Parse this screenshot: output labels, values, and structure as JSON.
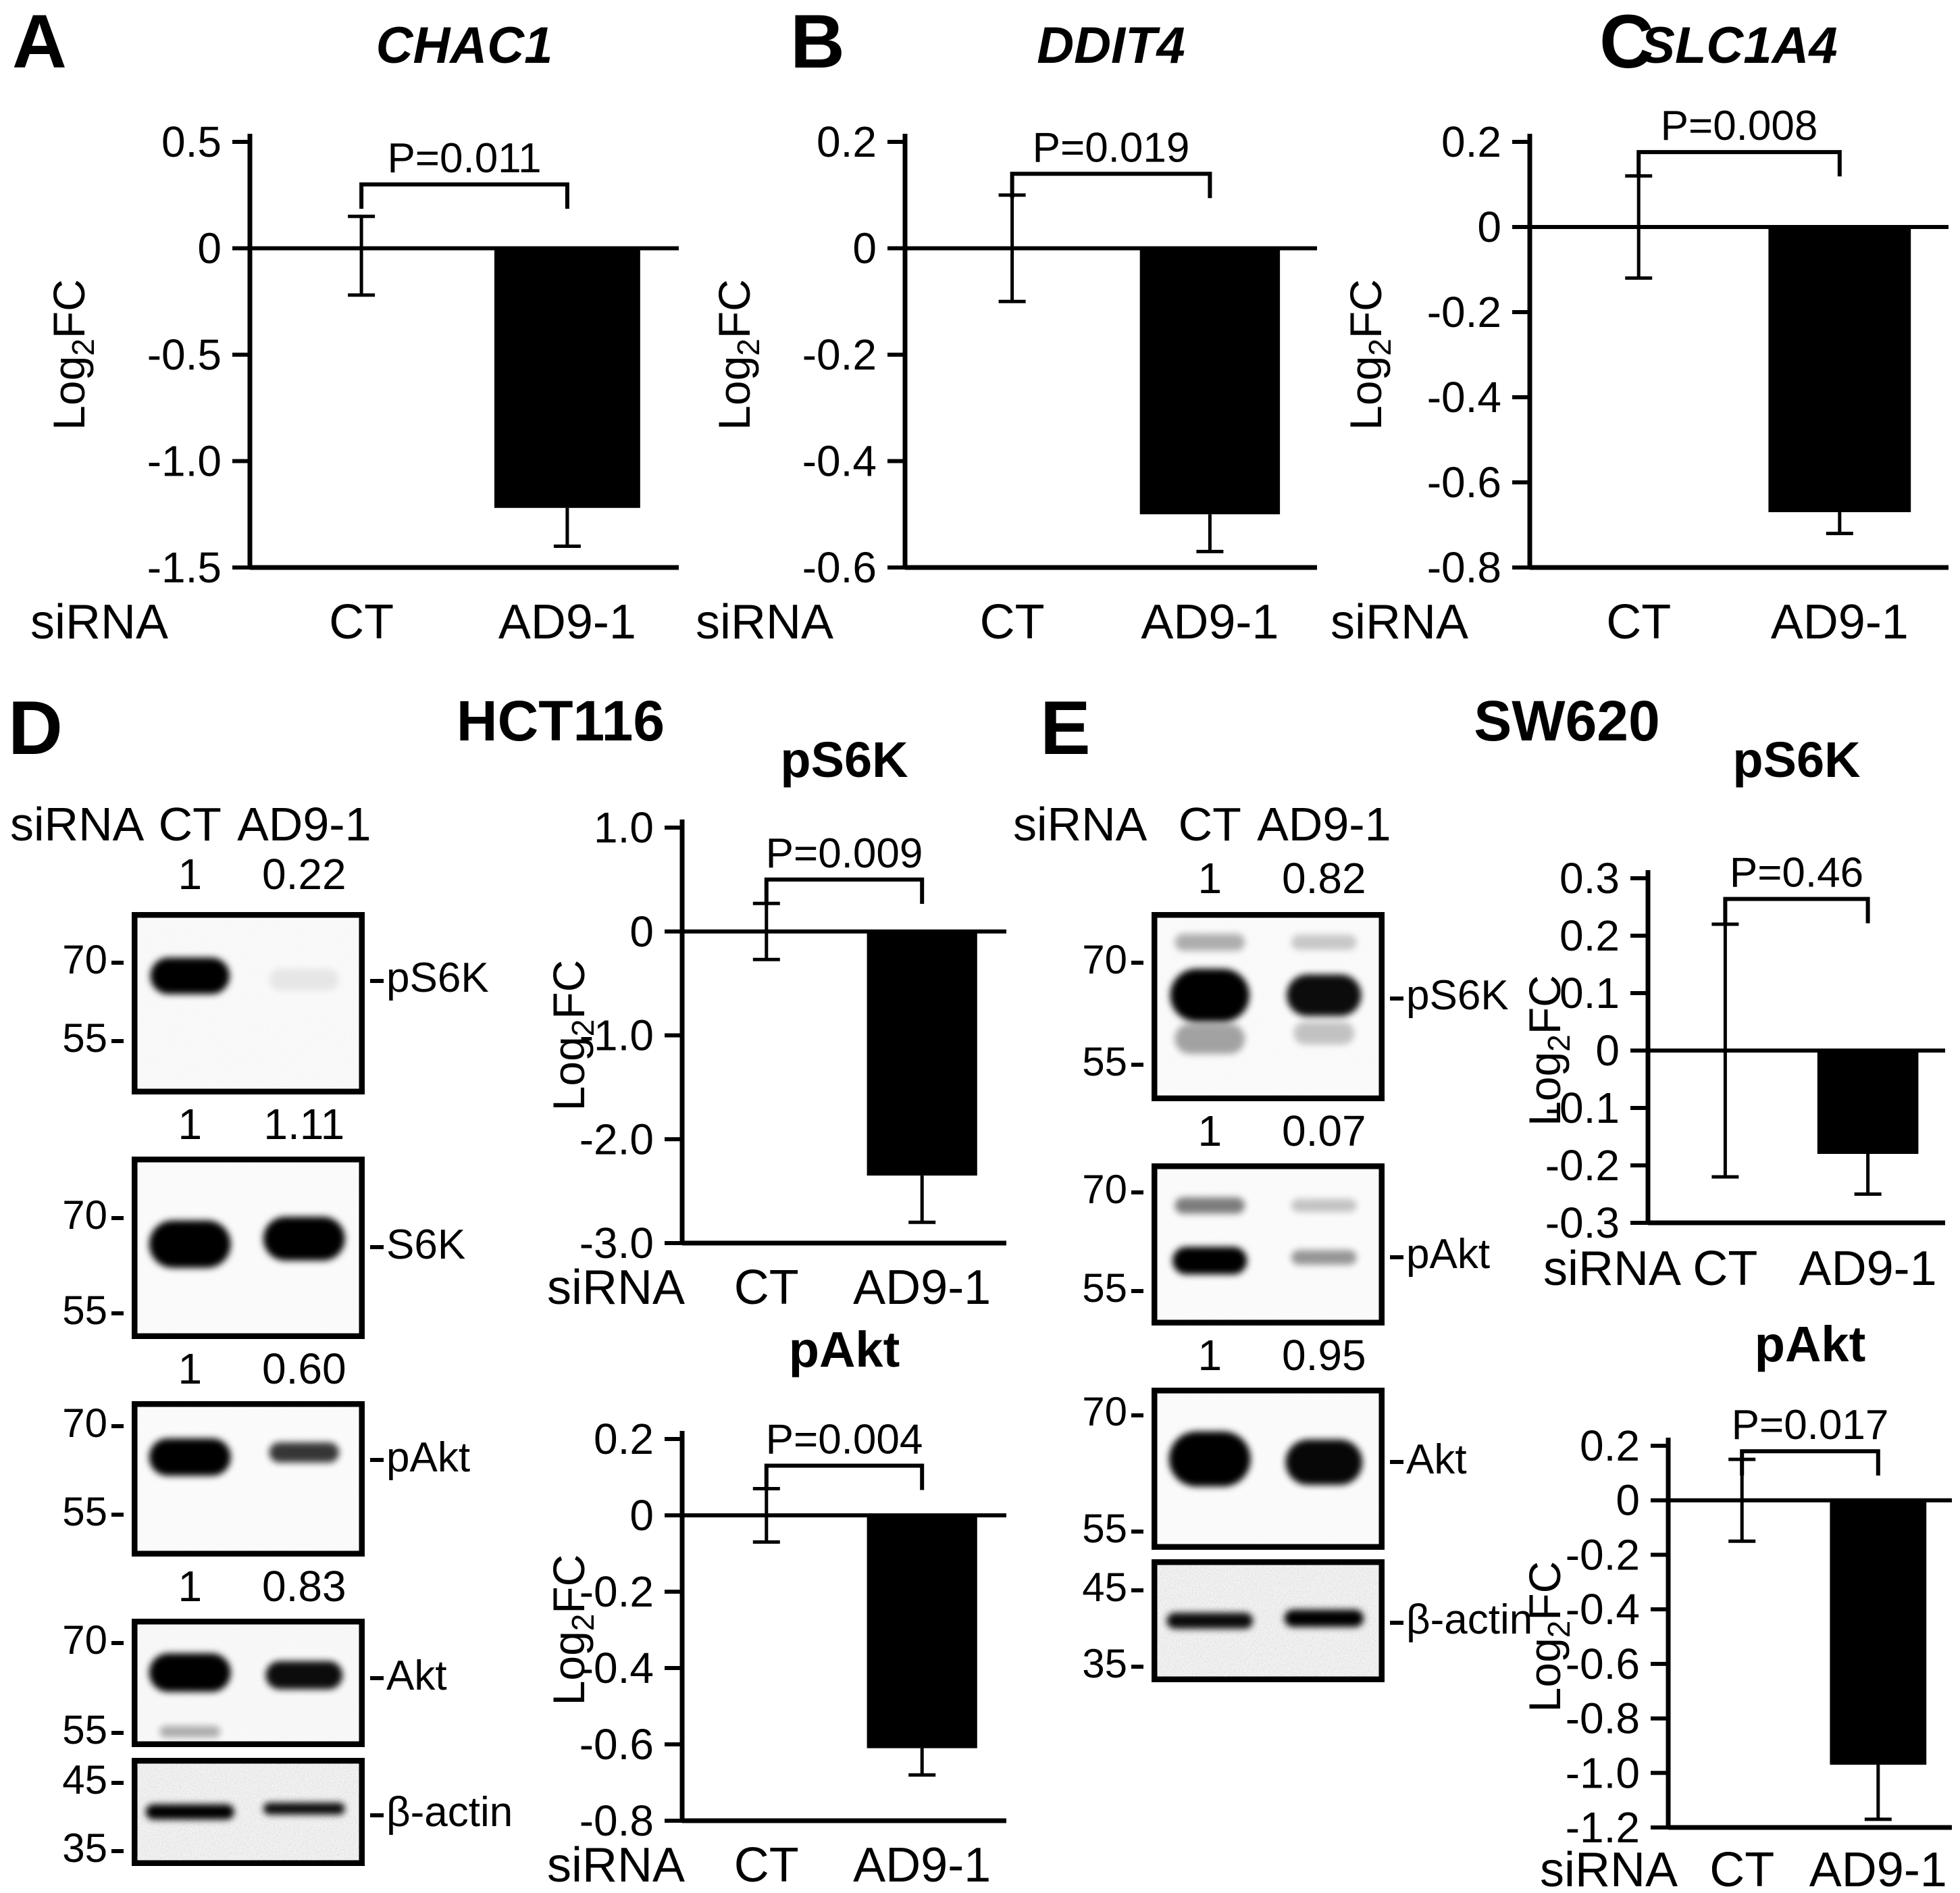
{
  "panels": {
    "A": {
      "letter": "A"
    },
    "B": {
      "letter": "B"
    },
    "C": {
      "letter": "C"
    },
    "D": {
      "letter": "D",
      "title": "HCT116"
    },
    "E": {
      "letter": "E",
      "title": "SW620"
    }
  },
  "axis": {
    "ylabel": {
      "pre": "Log",
      "sub": "2",
      "post": "FC"
    },
    "xlabel_prefix": "siRNA"
  },
  "chart_data": [
    {
      "id": "A",
      "type": "bar",
      "title": "CHAC1",
      "title_italic": true,
      "p_label": "P=0.011",
      "categories": [
        "CT",
        "AD9-1"
      ],
      "values": [
        0,
        -1.22
      ],
      "errors_up": [
        0.15,
        0
      ],
      "errors_down": [
        0.22,
        0.18
      ],
      "ylim": [
        -1.5,
        0.5
      ],
      "ylabel": "Log2FC",
      "xlabel_prefix": "siRNA",
      "bar_color": "#000000",
      "grid": false,
      "yticks": [
        {
          "v": 0.5,
          "label": "0.5"
        },
        {
          "v": 0,
          "label": "0"
        },
        {
          "v": -0.5,
          "label": "-0.5"
        },
        {
          "v": -1.0,
          "label": "-1.0"
        },
        {
          "v": -1.5,
          "label": "-1.5"
        }
      ]
    },
    {
      "id": "B",
      "type": "bar",
      "title": "DDIT4",
      "title_italic": true,
      "p_label": "P=0.019",
      "categories": [
        "CT",
        "AD9-1"
      ],
      "values": [
        0,
        -0.5
      ],
      "errors_up": [
        0.1,
        0
      ],
      "errors_down": [
        0.1,
        0.07
      ],
      "ylim": [
        -0.6,
        0.2
      ],
      "ylabel": "Log2FC",
      "xlabel_prefix": "siRNA",
      "bar_color": "#000000",
      "grid": false,
      "yticks": [
        {
          "v": 0.2,
          "label": "0.2"
        },
        {
          "v": 0,
          "label": "0"
        },
        {
          "v": -0.2,
          "label": "-0.2"
        },
        {
          "v": -0.4,
          "label": "-0.4"
        },
        {
          "v": -0.6,
          "label": "-0.6"
        }
      ]
    },
    {
      "id": "C",
      "type": "bar",
      "title": "SLC1A4",
      "title_italic": true,
      "p_label": "P=0.008",
      "categories": [
        "CT",
        "AD9-1"
      ],
      "values": [
        0,
        -0.67
      ],
      "errors_up": [
        0.12,
        0
      ],
      "errors_down": [
        0.12,
        0.05
      ],
      "ylim": [
        -0.8,
        0.2
      ],
      "ylabel": "Log2FC",
      "xlabel_prefix": "siRNA",
      "bar_color": "#000000",
      "grid": false,
      "yticks": [
        {
          "v": 0.2,
          "label": "0.2"
        },
        {
          "v": 0,
          "label": "0"
        },
        {
          "v": -0.2,
          "label": "-0.2"
        },
        {
          "v": -0.4,
          "label": "-0.4"
        },
        {
          "v": -0.6,
          "label": "-0.6"
        },
        {
          "v": -0.8,
          "label": "-0.8"
        }
      ]
    },
    {
      "id": "D_pS6K",
      "type": "bar",
      "title": "pS6K",
      "title_italic": false,
      "p_label": "P=0.009",
      "categories": [
        "CT",
        "AD9-1"
      ],
      "values": [
        0,
        -2.35
      ],
      "errors_up": [
        0.27,
        0
      ],
      "errors_down": [
        0.27,
        0.45
      ],
      "ylim": [
        -3.0,
        1.0
      ],
      "ylabel": "Log2FC",
      "xlabel_prefix": "siRNA",
      "bar_color": "#000000",
      "grid": false,
      "yticks": [
        {
          "v": 1.0,
          "label": "1.0"
        },
        {
          "v": 0,
          "label": "0"
        },
        {
          "v": -1.0,
          "label": "-1.0"
        },
        {
          "v": -2.0,
          "label": "-2.0"
        },
        {
          "v": -3.0,
          "label": "-3.0"
        }
      ]
    },
    {
      "id": "D_pAkt",
      "type": "bar",
      "title": "pAkt",
      "title_italic": false,
      "p_label": "P=0.004",
      "categories": [
        "CT",
        "AD9-1"
      ],
      "values": [
        0,
        -0.61
      ],
      "errors_up": [
        0.07,
        0
      ],
      "errors_down": [
        0.07,
        0.07
      ],
      "ylim": [
        -0.8,
        0.2
      ],
      "ylabel": "Log2FC",
      "xlabel_prefix": "siRNA",
      "bar_color": "#000000",
      "grid": false,
      "yticks": [
        {
          "v": 0.2,
          "label": "0.2"
        },
        {
          "v": 0,
          "label": "0"
        },
        {
          "v": -0.2,
          "label": "-0.2"
        },
        {
          "v": -0.4,
          "label": "-0.4"
        },
        {
          "v": -0.6,
          "label": "-0.6"
        },
        {
          "v": -0.8,
          "label": "-0.8"
        }
      ]
    },
    {
      "id": "E_pS6K",
      "type": "bar",
      "title": "pS6K",
      "title_italic": false,
      "p_label": "P=0.46",
      "categories": [
        "CT",
        "AD9-1"
      ],
      "values": [
        0,
        -0.18
      ],
      "errors_up": [
        0.22,
        0
      ],
      "errors_down": [
        0.22,
        0.07
      ],
      "ylim": [
        -0.3,
        0.3
      ],
      "ylabel": "Log2FC",
      "xlabel_prefix": "siRNA",
      "bar_color": "#000000",
      "grid": false,
      "yticks": [
        {
          "v": 0.3,
          "label": "0.3"
        },
        {
          "v": 0.2,
          "label": "0.2"
        },
        {
          "v": 0.1,
          "label": "0.1"
        },
        {
          "v": 0,
          "label": "0"
        },
        {
          "v": -0.1,
          "label": "-0.1"
        },
        {
          "v": -0.2,
          "label": "-0.2"
        },
        {
          "v": -0.3,
          "label": "-0.3"
        }
      ]
    },
    {
      "id": "E_pAkt",
      "type": "bar",
      "title": "pAkt",
      "title_italic": false,
      "p_label": "P=0.017",
      "categories": [
        "CT",
        "AD9-1"
      ],
      "values": [
        0,
        -0.97
      ],
      "errors_up": [
        0.15,
        0
      ],
      "errors_down": [
        0.15,
        0.2
      ],
      "ylim": [
        -1.2,
        0.2
      ],
      "ylabel": "Log2FC",
      "xlabel_prefix": "siRNA",
      "bar_color": "#000000",
      "grid": false,
      "yticks": [
        {
          "v": 0.2,
          "label": "0.2"
        },
        {
          "v": 0,
          "label": "0"
        },
        {
          "v": -0.2,
          "label": "-0.2"
        },
        {
          "v": -0.4,
          "label": "-0.4"
        },
        {
          "v": -0.6,
          "label": "-0.6"
        },
        {
          "v": -0.8,
          "label": "-0.8"
        },
        {
          "v": -1.0,
          "label": "-1.0"
        },
        {
          "v": -1.2,
          "label": "-1.2"
        }
      ]
    }
  ],
  "blots": {
    "D": {
      "cell_line": "HCT116",
      "sirna_label": "siRNA",
      "lane_labels": [
        "CT",
        "AD9-1"
      ],
      "rows": [
        {
          "protein": "pS6K",
          "values": [
            "1",
            "0.22"
          ],
          "markers": [
            {
              "label": "70",
              "pos": 0.27
            },
            {
              "label": "55",
              "pos": 0.7
            }
          ],
          "label_pos": 0.36,
          "noise": 0.1,
          "bands": [
            {
              "lane": 0,
              "y": 0.35,
              "rx": 0.17,
              "ry": 0.1,
              "o": 1
            },
            {
              "lane": 1,
              "y": 0.37,
              "rx": 0.15,
              "ry": 0.06,
              "o": 0.07
            }
          ]
        },
        {
          "protein": "S6K",
          "values": [
            "1",
            "1.11"
          ],
          "markers": [
            {
              "label": "70",
              "pos": 0.33
            },
            {
              "label": "55",
              "pos": 0.85
            }
          ],
          "label_pos": 0.48,
          "noise": 0.06,
          "bands": [
            {
              "lane": 0,
              "y": 0.48,
              "rx": 0.175,
              "ry": 0.13,
              "o": 1
            },
            {
              "lane": 1,
              "y": 0.45,
              "rx": 0.175,
              "ry": 0.12,
              "o": 1
            }
          ]
        },
        {
          "protein": "pAkt",
          "values": [
            "1",
            "0.60"
          ],
          "markers": [
            {
              "label": "70",
              "pos": 0.15
            },
            {
              "label": "55",
              "pos": 0.72
            }
          ],
          "label_pos": 0.36,
          "noise": 0.05,
          "bands": [
            {
              "lane": 0,
              "y": 0.36,
              "rx": 0.175,
              "ry": 0.12,
              "o": 1
            },
            {
              "lane": 1,
              "y": 0.33,
              "rx": 0.15,
              "ry": 0.065,
              "o": 0.78
            }
          ]
        },
        {
          "protein": "Akt",
          "values": [
            "1",
            "0.83"
          ],
          "markers": [
            {
              "label": "70",
              "pos": 0.18
            },
            {
              "label": "55",
              "pos": 0.88
            }
          ],
          "label_pos": 0.44,
          "noise": 0.14,
          "bands": [
            {
              "lane": 0,
              "y": 0.42,
              "rx": 0.175,
              "ry": 0.15,
              "o": 1
            },
            {
              "lane": 1,
              "y": 0.44,
              "rx": 0.165,
              "ry": 0.11,
              "o": 0.95
            },
            {
              "lane": 0,
              "y": 0.88,
              "rx": 0.13,
              "ry": 0.045,
              "o": 0.3
            }
          ]
        },
        {
          "protein": "beta-actin",
          "values": null,
          "markers": [
            {
              "label": "45",
              "pos": 0.22
            },
            {
              "label": "35",
              "pos": 0.85
            }
          ],
          "label_pos": 0.5,
          "noise": 0.45,
          "label_text": "β-actin",
          "bands": [
            {
              "lane": 0,
              "y": 0.5,
              "rx": 0.19,
              "ry": 0.07,
              "o": 1
            },
            {
              "lane": 1,
              "y": 0.47,
              "rx": 0.175,
              "ry": 0.055,
              "o": 0.95
            }
          ]
        }
      ]
    },
    "E": {
      "cell_line": "SW620",
      "sirna_label": "siRNA",
      "lane_labels": [
        "CT",
        "AD9-1"
      ],
      "rows": [
        {
          "protein": "pS6K",
          "values": [
            "1",
            "0.82"
          ],
          "markers": [
            {
              "label": "70",
              "pos": 0.26
            },
            {
              "label": "55",
              "pos": 0.8
            }
          ],
          "label_pos": 0.44,
          "noise": 0.07,
          "bands": [
            {
              "lane": 0,
              "y": 0.16,
              "rx": 0.15,
              "ry": 0.045,
              "o": 0.3
            },
            {
              "lane": 0,
              "y": 0.44,
              "rx": 0.17,
              "ry": 0.14,
              "o": 1
            },
            {
              "lane": 0,
              "y": 0.67,
              "rx": 0.15,
              "ry": 0.08,
              "o": 0.35
            },
            {
              "lane": 1,
              "y": 0.16,
              "rx": 0.14,
              "ry": 0.04,
              "o": 0.2
            },
            {
              "lane": 1,
              "y": 0.44,
              "rx": 0.16,
              "ry": 0.11,
              "o": 0.95
            },
            {
              "lane": 1,
              "y": 0.64,
              "rx": 0.13,
              "ry": 0.06,
              "o": 0.22
            }
          ]
        },
        {
          "protein": "pAkt",
          "values": [
            "1",
            "0.07"
          ],
          "markers": [
            {
              "label": "70",
              "pos": 0.17
            },
            {
              "label": "55",
              "pos": 0.78
            }
          ],
          "label_pos": 0.56,
          "noise": 0.06,
          "bands": [
            {
              "lane": 0,
              "y": 0.26,
              "rx": 0.15,
              "ry": 0.05,
              "o": 0.5
            },
            {
              "lane": 0,
              "y": 0.6,
              "rx": 0.16,
              "ry": 0.085,
              "o": 1
            },
            {
              "lane": 1,
              "y": 0.26,
              "rx": 0.14,
              "ry": 0.04,
              "o": 0.22
            },
            {
              "lane": 1,
              "y": 0.58,
              "rx": 0.14,
              "ry": 0.045,
              "o": 0.4
            }
          ]
        },
        {
          "protein": "Akt",
          "values": [
            "1",
            "0.95"
          ],
          "markers": [
            {
              "label": "70",
              "pos": 0.16
            },
            {
              "label": "55",
              "pos": 0.88
            }
          ],
          "label_pos": 0.44,
          "noise": 0.05,
          "bands": [
            {
              "lane": 0,
              "y": 0.44,
              "rx": 0.175,
              "ry": 0.17,
              "o": 1
            },
            {
              "lane": 1,
              "y": 0.46,
              "rx": 0.165,
              "ry": 0.14,
              "o": 0.97
            }
          ]
        },
        {
          "protein": "beta-actin",
          "values": null,
          "markers": [
            {
              "label": "45",
              "pos": 0.24
            },
            {
              "label": "35",
              "pos": 0.86
            }
          ],
          "label_pos": 0.49,
          "noise": 0.45,
          "label_text": "β-actin",
          "bands": [
            {
              "lane": 0,
              "y": 0.5,
              "rx": 0.185,
              "ry": 0.065,
              "o": 0.95
            },
            {
              "lane": 1,
              "y": 0.48,
              "rx": 0.17,
              "ry": 0.07,
              "o": 1
            }
          ]
        }
      ]
    }
  }
}
